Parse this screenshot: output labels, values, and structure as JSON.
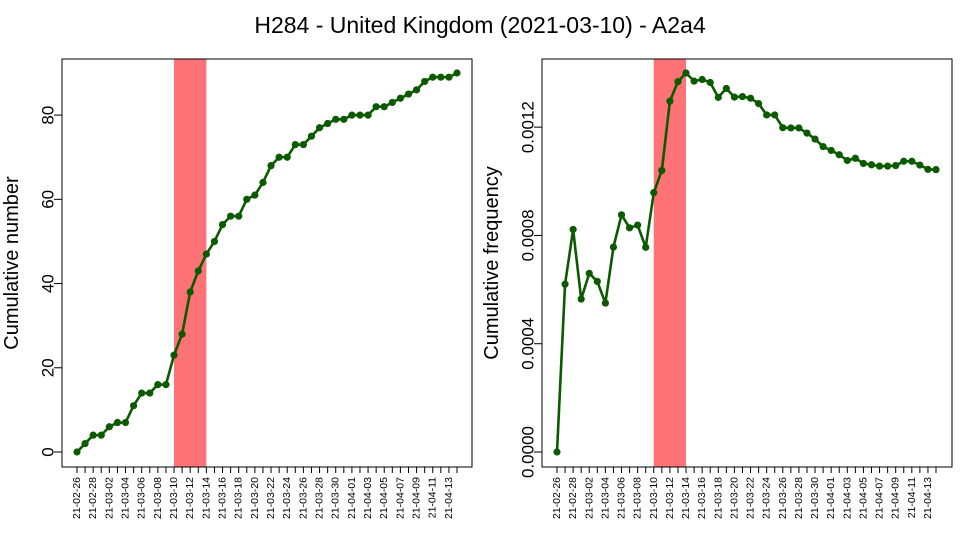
{
  "title": "H284 - United Kingdom (2021-03-10) - A2a4",
  "colors": {
    "line": "#0b5a00",
    "highlight": "#ff7276",
    "axis": "#000000"
  },
  "chart_data": [
    {
      "type": "line",
      "title": "",
      "xlabel": "",
      "ylabel": "Cumulative number",
      "x": [
        "21-02-26",
        "21-02-27",
        "21-02-28",
        "21-03-01",
        "21-03-02",
        "21-03-03",
        "21-03-04",
        "21-03-05",
        "21-03-06",
        "21-03-07",
        "21-03-08",
        "21-03-09",
        "21-03-10",
        "21-03-11",
        "21-03-12",
        "21-03-13",
        "21-03-14",
        "21-03-15",
        "21-03-16",
        "21-03-17",
        "21-03-18",
        "21-03-19",
        "21-03-20",
        "21-03-21",
        "21-03-22",
        "21-03-23",
        "21-03-24",
        "21-03-25",
        "21-03-26",
        "21-03-27",
        "21-03-28",
        "21-03-29",
        "21-03-30",
        "21-03-31",
        "21-04-01",
        "21-04-02",
        "21-04-03",
        "21-04-04",
        "21-04-05",
        "21-04-06",
        "21-04-07",
        "21-04-08",
        "21-04-09",
        "21-04-10",
        "21-04-11",
        "21-04-12",
        "21-04-13",
        "21-04-14"
      ],
      "x_tick_labels": [
        "21-02-26",
        "21-02-28",
        "21-03-02",
        "21-03-04",
        "21-03-06",
        "21-03-08",
        "21-03-10",
        "21-03-12",
        "21-03-14",
        "21-03-16",
        "21-03-18",
        "21-03-20",
        "21-03-22",
        "21-03-24",
        "21-03-26",
        "21-03-28",
        "21-03-30",
        "21-04-01",
        "21-04-03",
        "21-04-05",
        "21-04-07",
        "21-04-09",
        "21-04-11",
        "21-04-13"
      ],
      "y_ticks": [
        "0",
        "20",
        "40",
        "60",
        "80"
      ],
      "y_tick_values": [
        0,
        20,
        40,
        60,
        80
      ],
      "ylim": [
        0,
        90
      ],
      "highlight_range": [
        "21-03-10",
        "21-03-14"
      ],
      "series": [
        {
          "values": [
            0,
            2,
            4,
            4,
            6,
            7,
            7,
            11,
            14,
            14,
            16,
            16,
            23,
            28,
            38,
            43,
            47,
            50,
            54,
            56,
            56,
            60,
            61,
            64,
            68,
            70,
            70,
            73,
            73,
            75,
            77,
            78,
            79,
            79,
            80,
            80,
            80,
            82,
            82,
            83,
            84,
            85,
            86,
            88,
            89,
            89,
            89,
            90
          ]
        }
      ]
    },
    {
      "type": "line",
      "title": "",
      "xlabel": "",
      "ylabel": "Cumulative frequency",
      "x": [
        "21-02-26",
        "21-02-27",
        "21-02-28",
        "21-03-01",
        "21-03-02",
        "21-03-03",
        "21-03-04",
        "21-03-05",
        "21-03-06",
        "21-03-07",
        "21-03-08",
        "21-03-09",
        "21-03-10",
        "21-03-11",
        "21-03-12",
        "21-03-13",
        "21-03-14",
        "21-03-15",
        "21-03-16",
        "21-03-17",
        "21-03-18",
        "21-03-19",
        "21-03-20",
        "21-03-21",
        "21-03-22",
        "21-03-23",
        "21-03-24",
        "21-03-25",
        "21-03-26",
        "21-03-27",
        "21-03-28",
        "21-03-29",
        "21-03-30",
        "21-03-31",
        "21-04-01",
        "21-04-02",
        "21-04-03",
        "21-04-04",
        "21-04-05",
        "21-04-06",
        "21-04-07",
        "21-04-08",
        "21-04-09",
        "21-04-10",
        "21-04-11",
        "21-04-12",
        "21-04-13",
        "21-04-14"
      ],
      "x_tick_labels": [
        "21-02-26",
        "21-02-28",
        "21-03-02",
        "21-03-04",
        "21-03-06",
        "21-03-08",
        "21-03-10",
        "21-03-12",
        "21-03-14",
        "21-03-16",
        "21-03-18",
        "21-03-20",
        "21-03-22",
        "21-03-24",
        "21-03-26",
        "21-03-28",
        "21-03-30",
        "21-04-01",
        "21-04-03",
        "21-04-05",
        "21-04-07",
        "21-04-09",
        "21-04-11",
        "21-04-13"
      ],
      "y_ticks": [
        "0.0000",
        "0.0004",
        "0.0008",
        "0.0012"
      ],
      "y_tick_values": [
        0,
        0.0004,
        0.0008,
        0.0012
      ],
      "ylim": [
        0,
        0.0014
      ],
      "highlight_range": [
        "21-03-10",
        "21-03-14"
      ],
      "series": [
        {
          "values": [
            0,
            0.00062,
            0.000822,
            0.000565,
            0.00066,
            0.00063,
            0.00055,
            0.000757,
            0.000876,
            0.000828,
            0.000838,
            0.000756,
            0.000958,
            0.00104,
            0.001296,
            0.001368,
            0.0014,
            0.00137,
            0.001376,
            0.001365,
            0.00131,
            0.001343,
            0.001311,
            0.001313,
            0.001307,
            0.001287,
            0.001245,
            0.001245,
            0.001198,
            0.001197,
            0.001197,
            0.001178,
            0.001156,
            0.001128,
            0.001114,
            0.001098,
            0.001077,
            0.001085,
            0.001066,
            0.001061,
            0.001056,
            0.001056,
            0.001058,
            0.001074,
            0.001074,
            0.00106,
            0.001044,
            0.001043
          ]
        }
      ]
    }
  ]
}
